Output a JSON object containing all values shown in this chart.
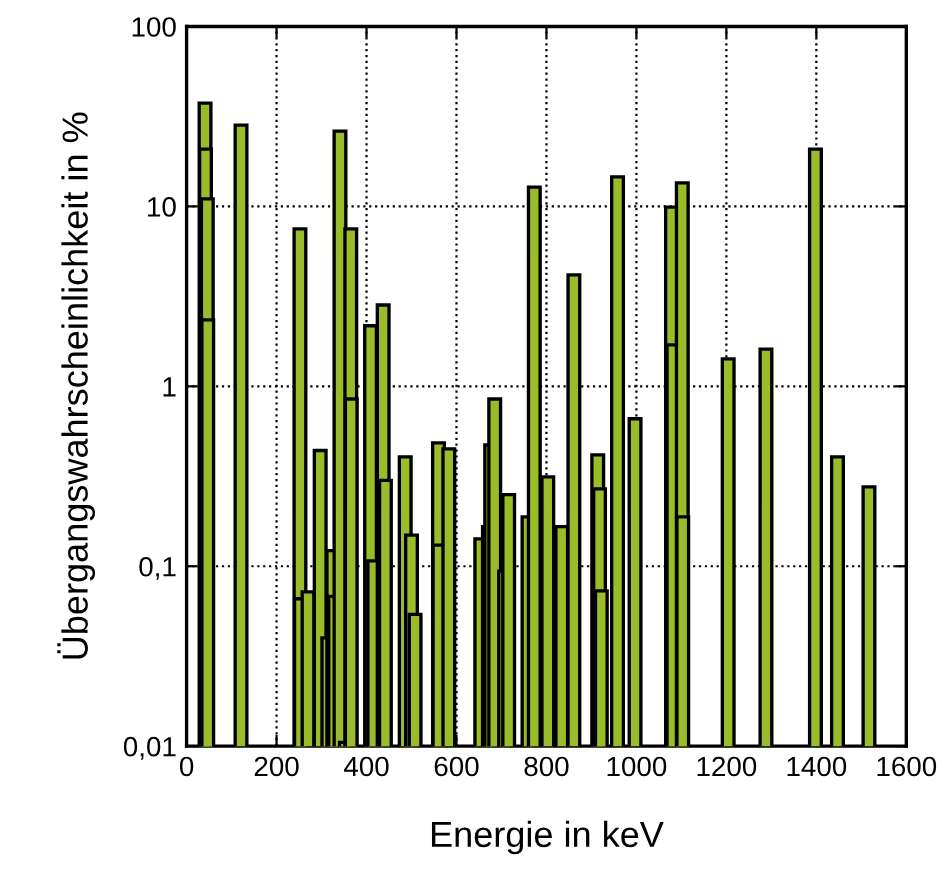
{
  "chart_data": {
    "type": "bar",
    "xlabel": "Energie in keV",
    "ylabel": "Übergangswahrscheinlichkeit in %",
    "x": [
      41,
      42,
      46,
      47,
      121,
      252,
      253,
      270,
      297,
      314,
      325,
      329,
      341,
      353,
      365,
      366,
      409,
      416,
      437,
      442,
      486,
      500,
      508,
      560,
      561,
      583,
      654,
      671,
      676,
      685,
      707,
      716,
      759,
      773,
      803,
      834,
      861,
      914,
      918,
      922,
      958,
      997,
      1078,
      1081,
      1102,
      1103,
      1204,
      1288,
      1398,
      1447,
      1517
    ],
    "values": [
      37.5,
      20.8,
      11.0,
      2.34,
      28.3,
      7.5,
      0.066,
      0.072,
      0.44,
      0.04,
      0.122,
      0.068,
      26.2,
      0.0105,
      7.5,
      0.85,
      2.17,
      0.107,
      2.83,
      0.3,
      0.405,
      0.149,
      0.054,
      0.485,
      0.131,
      0.449,
      0.142,
      0.166,
      0.472,
      0.85,
      0.094,
      0.25,
      0.188,
      12.8,
      0.314,
      0.166,
      4.16,
      0.416,
      0.269,
      0.073,
      14.6,
      0.66,
      9.9,
      1.7,
      13.5,
      0.188,
      1.42,
      1.61,
      20.8,
      0.405,
      0.276
    ],
    "color": "#9abb2a",
    "xlim": [
      0,
      1600
    ],
    "xticks": [
      0,
      200,
      400,
      600,
      800,
      1000,
      1200,
      1400,
      1600
    ],
    "log": "y",
    "ylim": [
      0.01,
      100
    ],
    "yticks": [
      {
        "value": 0.01,
        "label": "0,01"
      },
      {
        "value": 0.1,
        "label": "0,1"
      },
      {
        "value": 1,
        "label": "1"
      },
      {
        "value": 10,
        "label": "10"
      },
      {
        "value": 100,
        "label": "100"
      }
    ],
    "grid": true
  }
}
